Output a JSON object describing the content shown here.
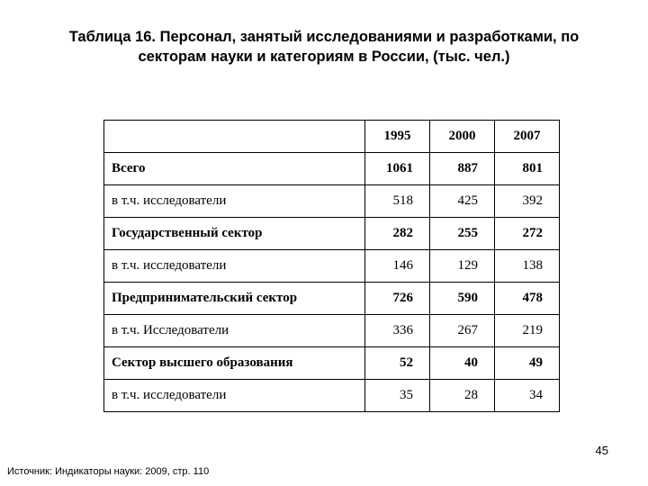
{
  "title": "Таблица 16. Персонал, занятый исследованиями и разработками, по  секторам науки и категориям в России, (тыс. чел.)",
  "table": {
    "header": {
      "label": "",
      "years": [
        "1995",
        "2000",
        "2007"
      ]
    },
    "rows": [
      {
        "label": "Всего",
        "values": [
          "1061",
          "887",
          "801"
        ]
      },
      {
        "label": "в т.ч. исследователи",
        "values": [
          "518",
          "425",
          "392"
        ]
      },
      {
        "label": "Государственный сектор",
        "values": [
          "282",
          "255",
          "272"
        ]
      },
      {
        "label": "в т.ч. исследователи",
        "values": [
          "146",
          "129",
          "138"
        ]
      },
      {
        "label": "Предпринимательский сектор",
        "values": [
          "726",
          "590",
          "478"
        ]
      },
      {
        "label": "в т.ч. Исследователи",
        "values": [
          "336",
          "267",
          "219"
        ]
      },
      {
        "label": "Сектор высшего образования",
        "values": [
          "52",
          "40",
          "49"
        ]
      },
      {
        "label": "в т.ч. исследователи",
        "values": [
          "35",
          "28",
          "34"
        ]
      }
    ]
  },
  "page_number": "45",
  "source": "Источник: Индикаторы науки: 2009, стр. 110"
}
